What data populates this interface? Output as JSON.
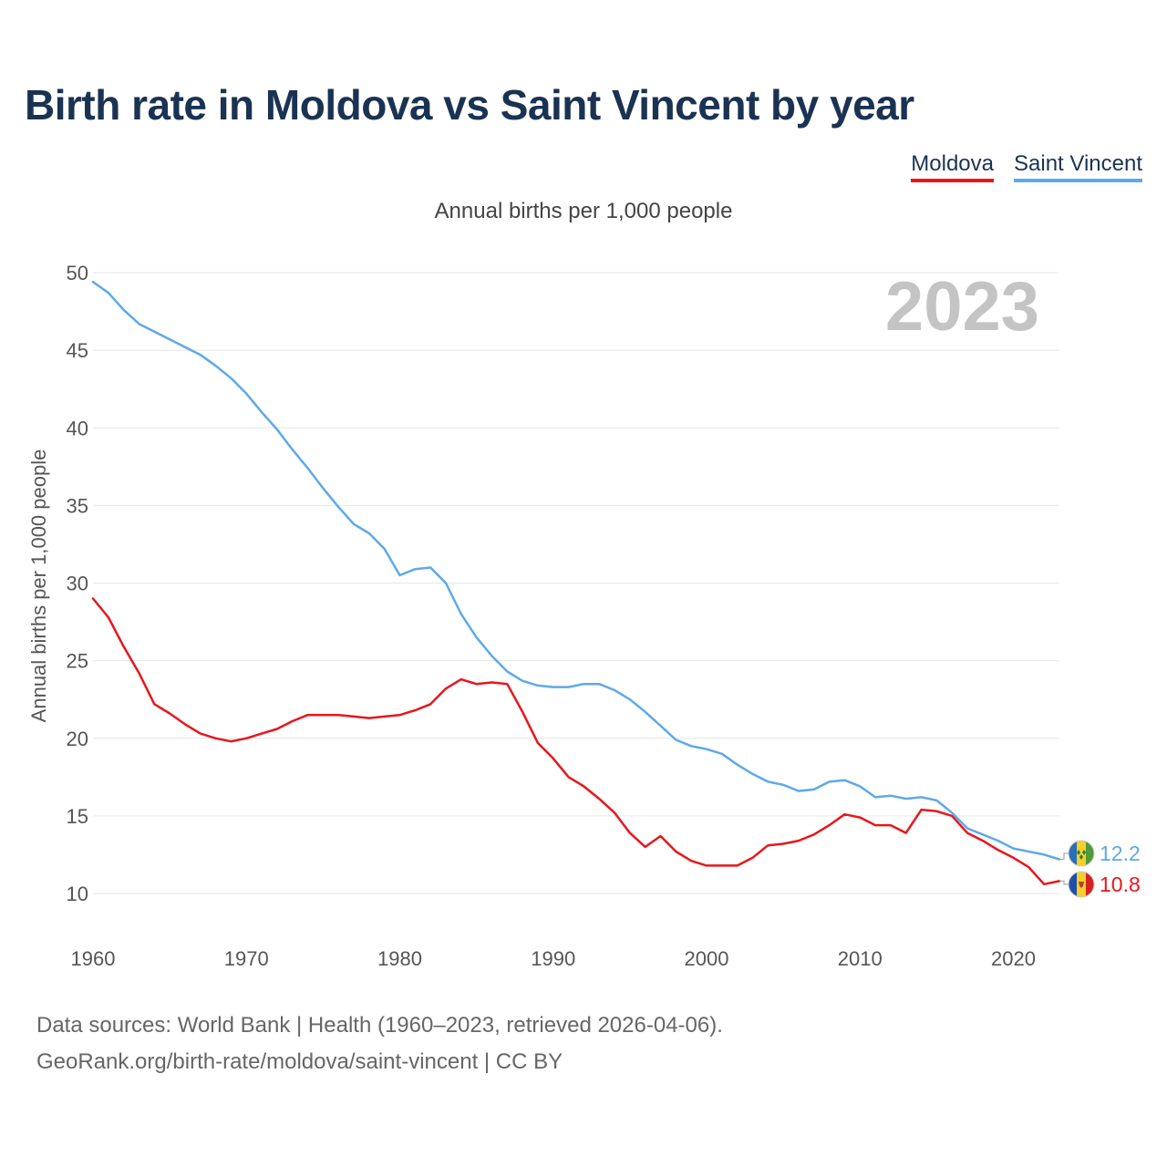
{
  "chart_data": {
    "type": "line",
    "title": "Birth rate in Moldova vs Saint Vincent by year",
    "subtitle": "Annual births per 1,000 people",
    "ylabel": "Annual births per 1,000 people",
    "xlabel": "",
    "xlim": [
      1960,
      2023
    ],
    "ylim": [
      7.5,
      50
    ],
    "x_ticks": [
      1960,
      1970,
      1980,
      1990,
      2000,
      2010,
      2020
    ],
    "y_ticks": [
      10,
      15,
      20,
      25,
      30,
      35,
      40,
      45,
      50
    ],
    "grid": true,
    "legend_position": "top-right",
    "year_watermark": "2023",
    "x": [
      1960,
      1961,
      1962,
      1963,
      1964,
      1965,
      1966,
      1967,
      1968,
      1969,
      1970,
      1971,
      1972,
      1973,
      1974,
      1975,
      1976,
      1977,
      1978,
      1979,
      1980,
      1981,
      1982,
      1983,
      1984,
      1985,
      1986,
      1987,
      1988,
      1989,
      1990,
      1991,
      1992,
      1993,
      1994,
      1995,
      1996,
      1997,
      1998,
      1999,
      2000,
      2001,
      2002,
      2003,
      2004,
      2005,
      2006,
      2007,
      2008,
      2009,
      2010,
      2011,
      2012,
      2013,
      2014,
      2015,
      2016,
      2017,
      2018,
      2019,
      2020,
      2021,
      2022,
      2023
    ],
    "series": [
      {
        "name": "Moldova",
        "color": "#e8161b",
        "end_label": "10.8",
        "values": [
          29.0,
          27.8,
          25.9,
          24.2,
          22.2,
          21.6,
          20.9,
          20.3,
          20.0,
          19.8,
          20.0,
          20.3,
          20.6,
          21.1,
          21.5,
          21.5,
          21.5,
          21.4,
          21.3,
          21.4,
          21.5,
          21.8,
          22.2,
          23.2,
          23.8,
          23.5,
          23.6,
          23.5,
          21.7,
          19.7,
          18.7,
          17.5,
          16.9,
          16.1,
          15.2,
          13.9,
          13.0,
          13.7,
          12.7,
          12.1,
          11.8,
          11.8,
          11.8,
          12.3,
          13.1,
          13.2,
          13.4,
          13.8,
          14.4,
          15.1,
          14.9,
          14.4,
          14.4,
          13.9,
          15.4,
          15.3,
          15.0,
          13.9,
          13.4,
          12.8,
          12.3,
          11.7,
          10.6,
          10.8
        ]
      },
      {
        "name": "Saint Vincent",
        "color": "#5ea9e8",
        "end_label": "12.2",
        "values": [
          49.4,
          48.7,
          47.6,
          46.7,
          46.2,
          45.7,
          45.2,
          44.7,
          44.0,
          43.2,
          42.2,
          41.0,
          39.9,
          38.6,
          37.4,
          36.1,
          34.9,
          33.8,
          33.2,
          32.2,
          30.5,
          30.9,
          31.0,
          30.0,
          28.0,
          26.5,
          25.3,
          24.3,
          23.7,
          23.4,
          23.3,
          23.3,
          23.5,
          23.5,
          23.1,
          22.5,
          21.7,
          20.8,
          19.9,
          19.5,
          19.3,
          19.0,
          18.3,
          17.7,
          17.2,
          17.0,
          16.6,
          16.7,
          17.2,
          17.3,
          16.9,
          16.2,
          16.3,
          16.1,
          16.2,
          16.0,
          15.2,
          14.2,
          13.8,
          13.4,
          12.9,
          12.7,
          12.5,
          12.2
        ]
      }
    ]
  },
  "footer": {
    "line1": "Data sources: World Bank | Health (1960–2023, retrieved 2026-04-06).",
    "line2": "GeoRank.org/birth-rate/moldova/saint-vincent | CC BY"
  }
}
